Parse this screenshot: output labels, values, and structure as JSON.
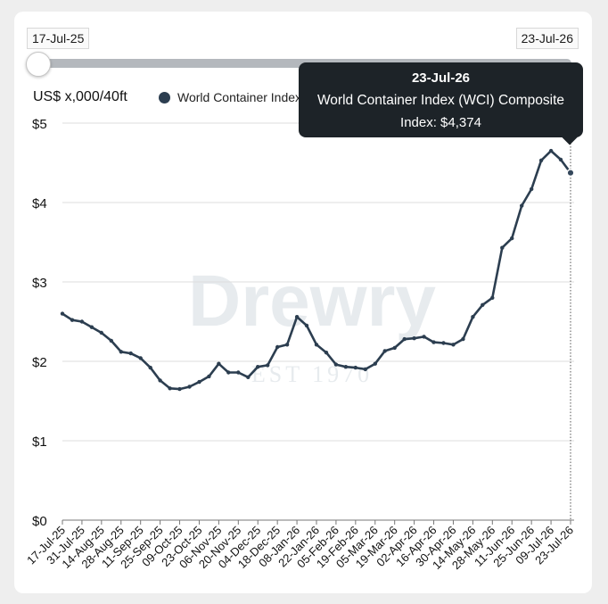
{
  "range_selector": {
    "start": "17-Jul-25",
    "end": "23-Jul-26"
  },
  "watermark": {
    "brand": "Drewry",
    "tagline": "EST 1970"
  },
  "tooltip": {
    "date": "23-Jul-26",
    "series": "World Container Index (WCI) Composite",
    "value_text": "Index: $4,374"
  },
  "colors": {
    "line": "#2c3e50",
    "tooltip_bg": "#1d2328",
    "grid": "#dddddd"
  },
  "chart_data": {
    "type": "line",
    "unit_label": "US$ x,000/40ft",
    "legend_label": "World Container Index",
    "ylim": [
      0,
      5
    ],
    "yticks": [
      0,
      1,
      2,
      3,
      4,
      5
    ],
    "ytick_labels": [
      "$0",
      "$1",
      "$2",
      "$3",
      "$4",
      "$5"
    ],
    "x_tick_labels": [
      "17-Jul-25",
      "31-Jul-25",
      "14-Aug-25",
      "28-Aug-25",
      "11-Sep-25",
      "25-Sep-25",
      "09-Oct-25",
      "23-Oct-25",
      "06-Nov-25",
      "20-Nov-25",
      "04-Dec-25",
      "18-Dec-25",
      "08-Jan-26",
      "22-Jan-26",
      "05-Feb-26",
      "19-Feb-26",
      "05-Mar-26",
      "19-Mar-26",
      "02-Apr-26",
      "16-Apr-26",
      "30-Apr-26",
      "14-May-26",
      "28-May-26",
      "11-Jun-26",
      "25-Jun-26",
      "09-Jul-26",
      "23-Jul-26"
    ],
    "series": [
      {
        "name": "World Container Index",
        "values": [
          2.6,
          2.52,
          2.5,
          2.43,
          2.36,
          2.26,
          2.12,
          2.1,
          2.04,
          1.92,
          1.76,
          1.66,
          1.65,
          1.68,
          1.74,
          1.81,
          1.97,
          1.86,
          1.86,
          1.8,
          1.93,
          1.95,
          2.18,
          2.21,
          2.56,
          2.45,
          2.21,
          2.11,
          1.96,
          1.93,
          1.92,
          1.9,
          1.97,
          2.13,
          2.17,
          2.28,
          2.29,
          2.31,
          2.24,
          2.23,
          2.21,
          2.28,
          2.56,
          2.71,
          2.8,
          3.43,
          3.55,
          3.96,
          4.17,
          4.53,
          4.65,
          4.54,
          4.374
        ]
      }
    ]
  }
}
